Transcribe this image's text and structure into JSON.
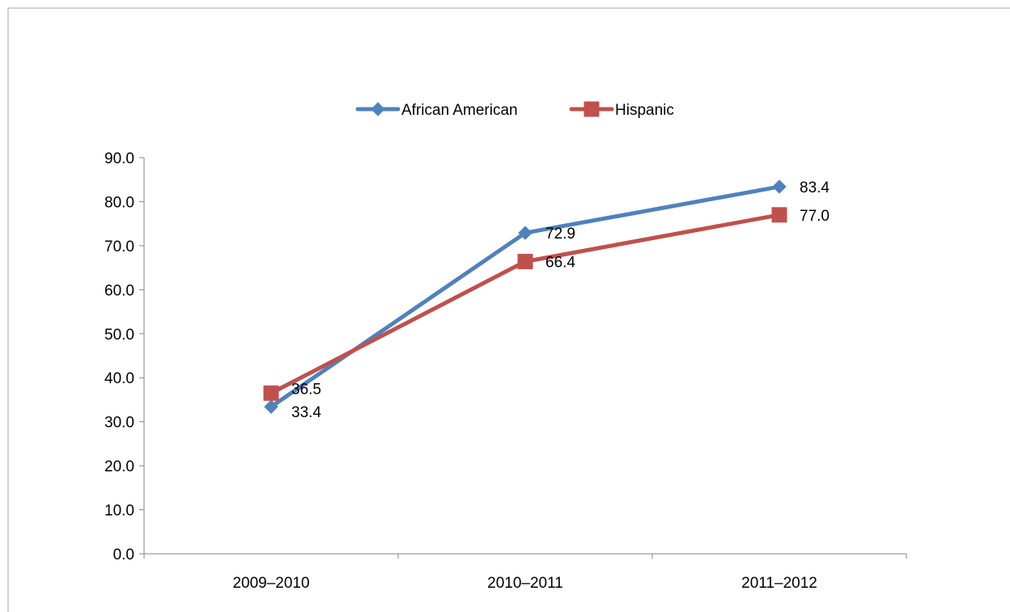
{
  "chart_data": {
    "type": "line",
    "title": "",
    "xlabel": "",
    "ylabel": "",
    "categories": [
      "2009–2010",
      "2010–2011",
      "2011–2012"
    ],
    "ylim": [
      0,
      90
    ],
    "y_ticks": [
      "0.0",
      "10.0",
      "20.0",
      "30.0",
      "40.0",
      "50.0",
      "60.0",
      "70.0",
      "80.0",
      "90.0"
    ],
    "grid": false,
    "legend_position": "top",
    "series": [
      {
        "name": "African American",
        "values": [
          33.4,
          72.9,
          83.4
        ],
        "labels": [
          "33.4",
          "72.9",
          "83.4"
        ],
        "color": "#4F81BD",
        "marker": "diamond"
      },
      {
        "name": "Hispanic",
        "values": [
          36.5,
          66.4,
          77.0
        ],
        "labels": [
          "36.5",
          "66.4",
          "77.0"
        ],
        "color": "#C0504D",
        "marker": "square"
      }
    ]
  }
}
